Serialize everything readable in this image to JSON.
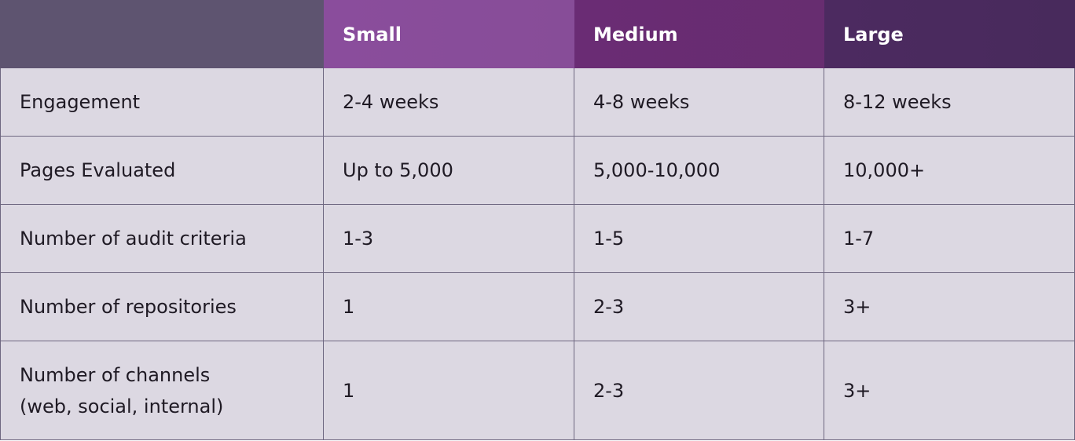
{
  "table": {
    "header": [
      "Small",
      "Medium",
      "Large"
    ],
    "rows": [
      {
        "label": [
          "Engagement"
        ],
        "cells": [
          "2-4 weeks",
          "4-8 weeks",
          "8-12 weeks"
        ]
      },
      {
        "label": [
          "Pages Evaluated"
        ],
        "cells": [
          "Up to 5,000",
          "5,000-10,000",
          "10,000+"
        ]
      },
      {
        "label": [
          "Number of audit criteria"
        ],
        "cells": [
          "1-3",
          "1-5",
          "1-7"
        ]
      },
      {
        "label": [
          "Number of repositories"
        ],
        "cells": [
          "1",
          "2-3",
          "3+"
        ]
      },
      {
        "label": [
          "Number of channels",
          "(web, social, internal)"
        ],
        "cells": [
          "1",
          "2-3",
          "3+"
        ]
      }
    ]
  }
}
